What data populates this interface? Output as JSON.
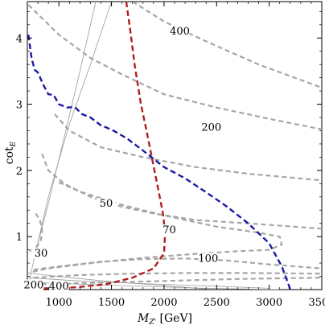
{
  "chart_data": {
    "type": "line",
    "xlabel": "M_{Z'} [GeV]",
    "ylabel": "cot_E",
    "xlim": [
      700,
      3500
    ],
    "ylim": [
      0.2,
      4.55
    ],
    "x_ticks": [
      1000,
      1500,
      2000,
      2500,
      3000,
      3500
    ],
    "y_ticks": [
      1,
      2,
      3,
      4
    ],
    "x_tick_labels": [
      "1000",
      "1500",
      "2000",
      "2500",
      "3000",
      "3500"
    ],
    "y_tick_labels": [
      "1",
      "2",
      "3",
      "4"
    ],
    "colors": {
      "contour": "#a6a6a6",
      "blue": "#1a1aa6",
      "red": "#b01e1e",
      "thin": "#9a9a9a"
    },
    "contour_labels": [
      {
        "text": "400",
        "x": 2150,
        "y": 4.05
      },
      {
        "text": "200",
        "x": 2450,
        "y": 2.6
      },
      {
        "text": "50",
        "x": 1450,
        "y": 1.45
      },
      {
        "text": "70",
        "x": 2050,
        "y": 1.05
      },
      {
        "text": "100",
        "x": 2420,
        "y": 0.62
      },
      {
        "text": "30",
        "x": 830,
        "y": 0.7
      },
      {
        "text": "200",
        "x": 760,
        "y": 0.22
      },
      {
        "text": "400",
        "x": 1000,
        "y": 0.2
      }
    ],
    "series": [
      {
        "style": "gray-dashed",
        "points": [
          [
            1700,
            4.55
          ],
          [
            2000,
            4.25
          ],
          [
            2400,
            3.95
          ],
          [
            2900,
            3.6
          ],
          [
            3500,
            3.25
          ]
        ]
      },
      {
        "style": "gray-dashed",
        "points": [
          [
            710,
            4.5
          ],
          [
            1000,
            4.05
          ],
          [
            1300,
            3.7
          ],
          [
            1600,
            3.45
          ],
          [
            2000,
            3.15
          ],
          [
            2500,
            2.95
          ],
          [
            3000,
            2.78
          ],
          [
            3500,
            2.62
          ]
        ]
      },
      {
        "style": "gray-dashed",
        "points": [
          [
            960,
            2.85
          ],
          [
            1100,
            2.6
          ],
          [
            1400,
            2.35
          ],
          [
            1800,
            2.2
          ],
          [
            2300,
            2.05
          ],
          [
            2800,
            1.95
          ],
          [
            3500,
            1.85
          ]
        ]
      },
      {
        "style": "gray-dashed",
        "points": [
          [
            840,
            2.25
          ],
          [
            900,
            2.0
          ],
          [
            1050,
            1.8
          ],
          [
            1300,
            1.6
          ],
          [
            1600,
            1.45
          ],
          [
            1900,
            1.35
          ],
          [
            2300,
            1.25
          ],
          [
            2800,
            1.2
          ],
          [
            3500,
            1.12
          ]
        ]
      },
      {
        "style": "gray-dashed",
        "points": [
          [
            780,
            1.35
          ],
          [
            820,
            1.25
          ],
          [
            840,
            1.1
          ],
          [
            830,
            0.95
          ],
          [
            790,
            0.85
          ],
          [
            720,
            0.78
          ]
        ]
      },
      {
        "style": "gray-dashed",
        "points": [
          [
            1000,
            1.82
          ],
          [
            1200,
            1.68
          ],
          [
            1600,
            1.48
          ],
          [
            2000,
            1.32
          ],
          [
            2500,
            1.15
          ],
          [
            2900,
            1.06
          ],
          [
            3100,
            1.0
          ],
          [
            3120,
            0.88
          ],
          [
            3000,
            0.8
          ],
          [
            2700,
            0.78
          ],
          [
            2300,
            0.74
          ],
          [
            1800,
            0.68
          ],
          [
            1300,
            0.6
          ],
          [
            900,
            0.52
          ],
          [
            720,
            0.46
          ]
        ]
      },
      {
        "style": "gray-dashed",
        "points": [
          [
            760,
            0.5
          ],
          [
            1000,
            0.55
          ],
          [
            1400,
            0.62
          ],
          [
            1800,
            0.66
          ],
          [
            2200,
            0.67
          ],
          [
            2600,
            0.64
          ],
          [
            3000,
            0.58
          ],
          [
            3500,
            0.52
          ]
        ]
      },
      {
        "style": "gray-dashed",
        "points": [
          [
            760,
            0.38
          ],
          [
            1200,
            0.42
          ],
          [
            1700,
            0.44
          ],
          [
            2200,
            0.45
          ],
          [
            2800,
            0.45
          ],
          [
            3500,
            0.44
          ]
        ]
      },
      {
        "style": "gray-dashed",
        "points": [
          [
            760,
            0.28
          ],
          [
            1300,
            0.3
          ],
          [
            2000,
            0.33
          ],
          [
            2700,
            0.36
          ],
          [
            3500,
            0.38
          ]
        ]
      },
      {
        "style": "thin-gray",
        "points": [
          [
            760,
            0.65
          ],
          [
            900,
            1.5
          ],
          [
            1050,
            2.5
          ],
          [
            1200,
            3.5
          ],
          [
            1350,
            4.55
          ]
        ]
      },
      {
        "style": "thin-gray",
        "points": [
          [
            720,
            0.35
          ],
          [
            900,
            1.6
          ],
          [
            1100,
            2.7
          ],
          [
            1300,
            3.6
          ],
          [
            1500,
            4.55
          ]
        ]
      },
      {
        "style": "thin-gray",
        "points": [
          [
            700,
            0.32
          ],
          [
            1200,
            0.28
          ],
          [
            1800,
            0.25
          ],
          [
            2400,
            0.22
          ],
          [
            3100,
            0.2
          ]
        ]
      },
      {
        "style": "thin-gray",
        "points": [
          [
            700,
            0.38
          ],
          [
            1200,
            0.33
          ],
          [
            1800,
            0.29
          ],
          [
            2500,
            0.25
          ],
          [
            3000,
            0.22
          ]
        ]
      },
      {
        "style": "thin-gray",
        "points": [
          [
            700,
            0.45
          ],
          [
            1100,
            0.38
          ],
          [
            1500,
            0.32
          ],
          [
            2000,
            0.26
          ],
          [
            2400,
            0.21
          ]
        ]
      },
      {
        "style": "blue-dashed",
        "points": [
          [
            710,
            4.05
          ],
          [
            740,
            3.7
          ],
          [
            770,
            3.52
          ],
          [
            800,
            3.48
          ],
          [
            850,
            3.3
          ],
          [
            900,
            3.15
          ],
          [
            950,
            3.14
          ],
          [
            1000,
            3.0
          ],
          [
            1080,
            2.95
          ],
          [
            1150,
            2.96
          ],
          [
            1220,
            2.85
          ],
          [
            1300,
            2.8
          ],
          [
            1400,
            2.68
          ],
          [
            1450,
            2.65
          ],
          [
            1520,
            2.6
          ],
          [
            1650,
            2.48
          ],
          [
            1800,
            2.3
          ],
          [
            2000,
            2.05
          ],
          [
            2200,
            1.88
          ],
          [
            2400,
            1.67
          ],
          [
            2600,
            1.45
          ],
          [
            2800,
            1.2
          ],
          [
            3000,
            0.9
          ],
          [
            3120,
            0.55
          ],
          [
            3190,
            0.25
          ],
          [
            3200,
            0.18
          ]
        ]
      },
      {
        "style": "red-dashed",
        "points": [
          [
            1640,
            4.55
          ],
          [
            1680,
            4.1
          ],
          [
            1720,
            3.6
          ],
          [
            1780,
            3.0
          ],
          [
            1840,
            2.55
          ],
          [
            1890,
            2.15
          ],
          [
            1940,
            1.75
          ],
          [
            1990,
            1.35
          ],
          [
            2010,
            1.05
          ],
          [
            2000,
            0.75
          ],
          [
            1900,
            0.52
          ],
          [
            1700,
            0.38
          ],
          [
            1450,
            0.28
          ],
          [
            1200,
            0.24
          ],
          [
            1000,
            0.22
          ],
          [
            820,
            0.22
          ]
        ]
      }
    ]
  }
}
